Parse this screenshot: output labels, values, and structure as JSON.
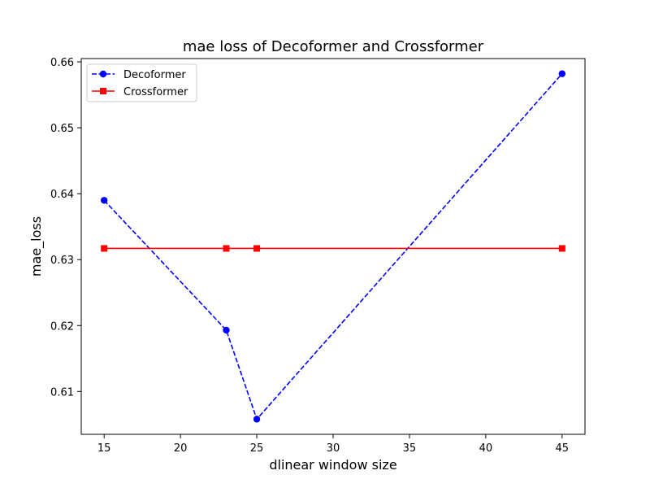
{
  "chart_data": {
    "type": "line",
    "title": "mae loss of Decoformer and Crossformer",
    "xlabel": "dlinear window size",
    "ylabel": "mae_loss",
    "xlim": [
      13.5,
      46.5
    ],
    "ylim": [
      0.6035,
      0.6605
    ],
    "xticks": [
      15,
      20,
      25,
      30,
      35,
      40,
      45
    ],
    "yticks": [
      0.61,
      0.62,
      0.63,
      0.64,
      0.65,
      0.66
    ],
    "xtick_labels": [
      "15",
      "20",
      "25",
      "30",
      "35",
      "40",
      "45"
    ],
    "ytick_labels": [
      "0.61",
      "0.62",
      "0.63",
      "0.64",
      "0.65",
      "0.66"
    ],
    "grid": false,
    "legend": "top-left",
    "series": [
      {
        "name": "Decoformer",
        "x": [
          15,
          23,
          25,
          45
        ],
        "y": [
          0.639,
          0.6193,
          0.6058,
          0.6582
        ],
        "color": "#0000ff",
        "linestyle": "dashed",
        "marker": "circle"
      },
      {
        "name": "Crossformer",
        "x": [
          15,
          23,
          25,
          45
        ],
        "y": [
          0.6317,
          0.6317,
          0.6317,
          0.6317
        ],
        "color": "#ff0000",
        "linestyle": "solid",
        "marker": "square"
      }
    ]
  }
}
